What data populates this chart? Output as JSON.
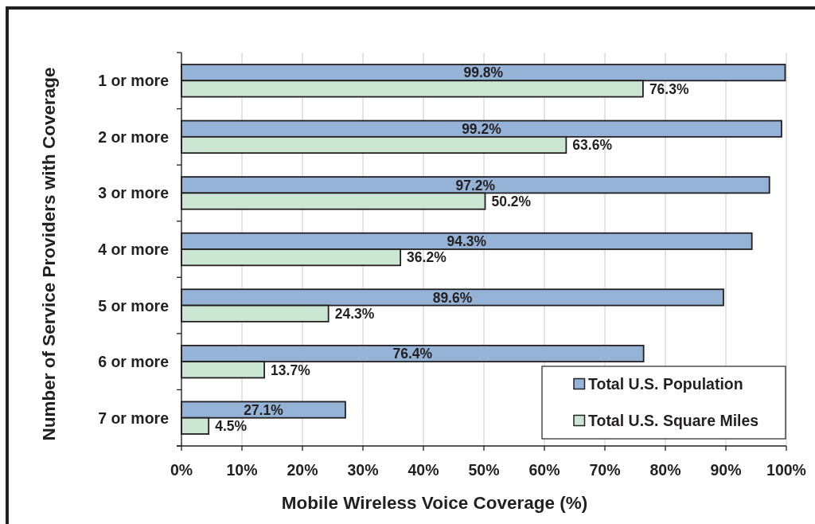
{
  "chart_data": {
    "type": "bar",
    "orientation": "horizontal",
    "xlabel": "Mobile Wireless Voice Coverage (%)",
    "ylabel": "Number of Service Providers with Coverage",
    "categories": [
      "1 or more",
      "2 or more",
      "3 or more",
      "4 or more",
      "5 or more",
      "6 or more",
      "7 or more"
    ],
    "series": [
      {
        "name": "Total U.S. Population",
        "color": "#95b3d7",
        "values": [
          99.8,
          99.2,
          97.2,
          94.3,
          89.6,
          76.4,
          27.1
        ],
        "value_labels": [
          "99.8%",
          "99.2%",
          "97.2%",
          "94.3%",
          "89.6%",
          "76.4%",
          "27.1%"
        ]
      },
      {
        "name": "Total U.S. Square Miles",
        "color": "#cce6d4",
        "values": [
          76.3,
          63.6,
          50.2,
          36.2,
          24.3,
          13.7,
          4.5
        ],
        "value_labels": [
          "76.3%",
          "63.6%",
          "50.2%",
          "36.2%",
          "24.3%",
          "13.7%",
          "4.5%"
        ]
      }
    ],
    "xlim": [
      0,
      100
    ],
    "xticks": [
      {
        "value": 0,
        "label": "0%"
      },
      {
        "value": 10,
        "label": "10%"
      },
      {
        "value": 20,
        "label": "20%"
      },
      {
        "value": 30,
        "label": "30%"
      },
      {
        "value": 40,
        "label": "40%"
      },
      {
        "value": 50,
        "label": "50%"
      },
      {
        "value": 60,
        "label": "60%"
      },
      {
        "value": 70,
        "label": "70%"
      },
      {
        "value": 80,
        "label": "80%"
      },
      {
        "value": 90,
        "label": "90%"
      },
      {
        "value": 100,
        "label": "100%"
      }
    ],
    "grid": "x",
    "legend": "bottom right"
  }
}
